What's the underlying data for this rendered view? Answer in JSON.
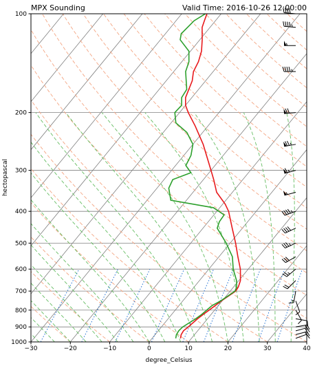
{
  "chart_data": {
    "type": "line",
    "title_left": "MPX Sounding",
    "title_right": "Valid Time: 2016-10-26 12:00:00",
    "xlabel": "degree_Celsius",
    "ylabel": "hectopascal",
    "xlim": [
      -30,
      40
    ],
    "ylim": [
      1000,
      100
    ],
    "y_scale": "log",
    "x_ticks": [
      -30,
      -20,
      -10,
      0,
      10,
      20,
      30,
      40
    ],
    "y_ticks": [
      100,
      200,
      300,
      400,
      500,
      600,
      700,
      800,
      900,
      1000
    ],
    "grid": true,
    "series": [
      {
        "role": "temperature",
        "color": "#e8191c",
        "points": [
          {
            "p": 975,
            "t": 7.2
          },
          {
            "p": 950,
            "t": 6.6
          },
          {
            "p": 925,
            "t": 6.4
          },
          {
            "p": 900,
            "t": 6.8
          },
          {
            "p": 850,
            "t": 7.5
          },
          {
            "p": 825,
            "t": 8.0
          },
          {
            "p": 800,
            "t": 8.6
          },
          {
            "p": 775,
            "t": 9.2
          },
          {
            "p": 750,
            "t": 9.8
          },
          {
            "p": 725,
            "t": 10.6
          },
          {
            "p": 700,
            "t": 11.4
          },
          {
            "p": 680,
            "t": 11.2
          },
          {
            "p": 650,
            "t": 10.4
          },
          {
            "p": 600,
            "t": 8.0
          },
          {
            "p": 550,
            "t": 4.8
          },
          {
            "p": 500,
            "t": 1.4
          },
          {
            "p": 450,
            "t": -2.6
          },
          {
            "p": 400,
            "t": -7.0
          },
          {
            "p": 380,
            "t": -9.4
          },
          {
            "p": 350,
            "t": -14.0
          },
          {
            "p": 320,
            "t": -17.4
          },
          {
            "p": 300,
            "t": -20.0
          },
          {
            "p": 250,
            "t": -27.4
          },
          {
            "p": 220,
            "t": -33.2
          },
          {
            "p": 200,
            "t": -37.8
          },
          {
            "p": 190,
            "t": -40.0
          },
          {
            "p": 180,
            "t": -41.6
          },
          {
            "p": 160,
            "t": -43.4
          },
          {
            "p": 150,
            "t": -45.0
          },
          {
            "p": 140,
            "t": -45.8
          },
          {
            "p": 130,
            "t": -47.2
          },
          {
            "p": 120,
            "t": -49.4
          },
          {
            "p": 110,
            "t": -52.0
          },
          {
            "p": 105,
            "t": -52.8
          },
          {
            "p": 100,
            "t": -53.6
          }
        ]
      },
      {
        "role": "dewpoint",
        "color": "#2ca02c",
        "points": [
          {
            "p": 975,
            "t": 6.0
          },
          {
            "p": 950,
            "t": 5.4
          },
          {
            "p": 925,
            "t": 5.2
          },
          {
            "p": 900,
            "t": 5.4
          },
          {
            "p": 850,
            "t": 7.0
          },
          {
            "p": 825,
            "t": 7.6
          },
          {
            "p": 800,
            "t": 8.0
          },
          {
            "p": 775,
            "t": 8.4
          },
          {
            "p": 750,
            "t": 9.6
          },
          {
            "p": 725,
            "t": 10.4
          },
          {
            "p": 700,
            "t": 11.2
          },
          {
            "p": 680,
            "t": 10.8
          },
          {
            "p": 650,
            "t": 9.4
          },
          {
            "p": 600,
            "t": 6.2
          },
          {
            "p": 550,
            "t": 3.4
          },
          {
            "p": 500,
            "t": -1.0
          },
          {
            "p": 450,
            "t": -6.4
          },
          {
            "p": 430,
            "t": -7.2
          },
          {
            "p": 410,
            "t": -7.4
          },
          {
            "p": 390,
            "t": -11.6
          },
          {
            "p": 370,
            "t": -24.0
          },
          {
            "p": 340,
            "t": -27.0
          },
          {
            "p": 320,
            "t": -27.8
          },
          {
            "p": 305,
            "t": -24.6
          },
          {
            "p": 290,
            "t": -27.4
          },
          {
            "p": 270,
            "t": -28.2
          },
          {
            "p": 250,
            "t": -30.0
          },
          {
            "p": 230,
            "t": -34.0
          },
          {
            "p": 215,
            "t": -38.8
          },
          {
            "p": 200,
            "t": -41.2
          },
          {
            "p": 190,
            "t": -41.0
          },
          {
            "p": 180,
            "t": -42.6
          },
          {
            "p": 170,
            "t": -43.0
          },
          {
            "p": 150,
            "t": -47.0
          },
          {
            "p": 140,
            "t": -48.2
          },
          {
            "p": 130,
            "t": -50.4
          },
          {
            "p": 120,
            "t": -55.0
          },
          {
            "p": 115,
            "t": -56.0
          },
          {
            "p": 105,
            "t": -55.4
          },
          {
            "p": 100,
            "t": -54.0
          }
        ]
      }
    ],
    "wind_barbs": [
      {
        "p": 975,
        "dir": 70,
        "spd": 10
      },
      {
        "p": 950,
        "dir": 75,
        "spd": 15
      },
      {
        "p": 925,
        "dir": 75,
        "spd": 15
      },
      {
        "p": 900,
        "dir": 80,
        "spd": 15
      },
      {
        "p": 850,
        "dir": 100,
        "spd": 10
      },
      {
        "p": 800,
        "dir": 150,
        "spd": 10
      },
      {
        "p": 750,
        "dir": 160,
        "spd": 10
      },
      {
        "p": 700,
        "dir": 190,
        "spd": 15
      },
      {
        "p": 650,
        "dir": 225,
        "spd": 20
      },
      {
        "p": 600,
        "dir": 230,
        "spd": 25
      },
      {
        "p": 550,
        "dir": 240,
        "spd": 30
      },
      {
        "p": 500,
        "dir": 245,
        "spd": 35
      },
      {
        "p": 450,
        "dir": 245,
        "spd": 40
      },
      {
        "p": 400,
        "dir": 250,
        "spd": 45
      },
      {
        "p": 350,
        "dir": 255,
        "spd": 55
      },
      {
        "p": 300,
        "dir": 255,
        "spd": 65
      },
      {
        "p": 250,
        "dir": 260,
        "spd": 75
      },
      {
        "p": 200,
        "dir": 265,
        "spd": 70
      },
      {
        "p": 150,
        "dir": 270,
        "spd": 45
      },
      {
        "p": 125,
        "dir": 270,
        "spd": 55
      },
      {
        "p": 110,
        "dir": 275,
        "spd": 45
      },
      {
        "p": 100,
        "dir": 275,
        "spd": 40
      }
    ],
    "reference_lines": {
      "isotherm_color": "#808080",
      "dry_adiabat_color": "#f4a582",
      "moist_adiabat_color": "#66bd63",
      "mixing_ratio_color": "#1f6fd1"
    }
  }
}
